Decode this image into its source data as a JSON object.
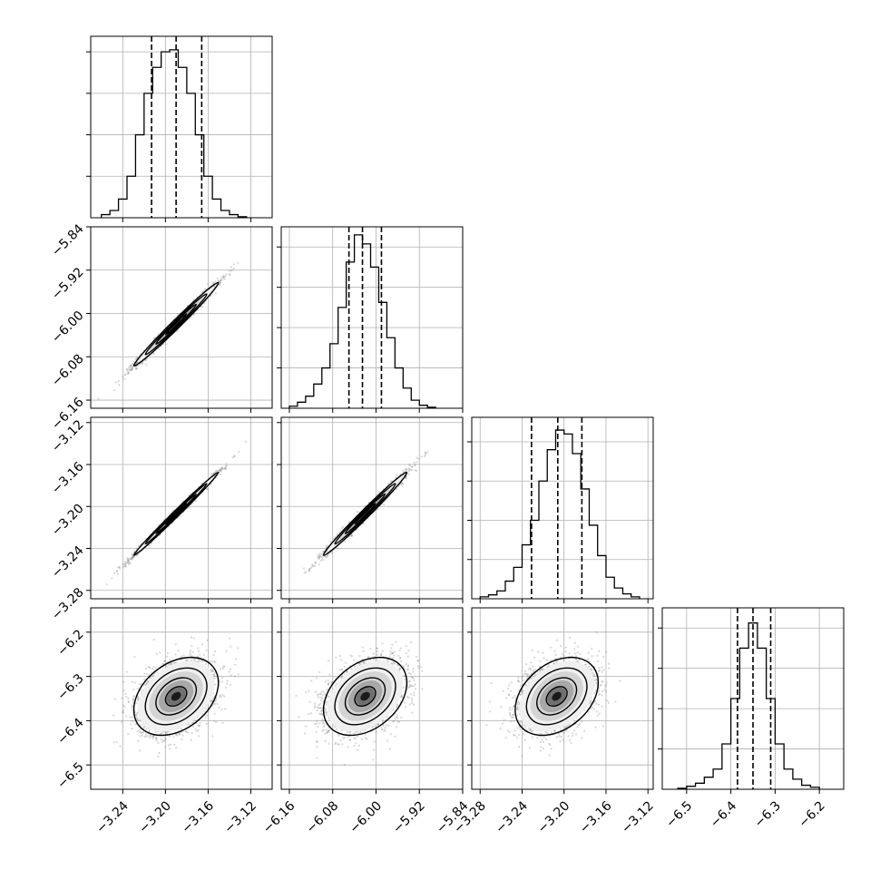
{
  "chart_data": {
    "type": "corner",
    "grid": true,
    "parameters": [
      {
        "range": [
          -3.27,
          -3.1
        ],
        "ticks": [
          -3.24,
          -3.2,
          -3.16,
          -3.12
        ],
        "tick_labels": [
          "−3.24",
          "−3.20",
          "−3.16",
          "−3.12"
        ],
        "quantiles": [
          -3.213,
          -3.19,
          -3.166
        ],
        "center": -3.19,
        "sd": 0.018
      },
      {
        "range": [
          -6.175,
          -5.84
        ],
        "ticks": [
          -6.16,
          -6.08,
          -6.0,
          -5.92,
          -5.84
        ],
        "tick_labels": [
          "−6.16",
          "−6.08",
          "−6.00",
          "−5.92",
          "−5.84"
        ],
        "quantiles": [
          -6.05,
          -6.025,
          -5.99
        ],
        "center": -6.02,
        "sd": 0.035
      },
      {
        "range": [
          -3.288,
          -3.115
        ],
        "ticks": [
          -3.28,
          -3.24,
          -3.2,
          -3.16,
          -3.12
        ],
        "tick_labels": [
          "−3.28",
          "−3.24",
          "−3.20",
          "−3.16",
          "−3.12"
        ],
        "quantiles": [
          -3.231,
          -3.206,
          -3.183
        ],
        "center": -3.207,
        "sd": 0.018
      },
      {
        "range": [
          -6.555,
          -6.145
        ],
        "ticks": [
          -6.5,
          -6.4,
          -6.3,
          -6.2
        ],
        "tick_labels": [
          "−6.5",
          "−6.4",
          "−6.3",
          "−6.2"
        ],
        "quantiles": [
          -6.385,
          -6.35,
          -6.31
        ],
        "center": -6.345,
        "sd": 0.04
      }
    ],
    "histograms": [
      {
        "parameter": 0,
        "bin_edges": [
          -3.26,
          -3.252,
          -3.244,
          -3.236,
          -3.228,
          -3.22,
          -3.212,
          -3.204,
          -3.196,
          -3.188,
          -3.18,
          -3.172,
          -3.164,
          -3.156,
          -3.148,
          -3.14,
          -3.132,
          -3.124
        ],
        "counts": [
          3,
          7,
          18,
          40,
          80,
          120,
          145,
          160,
          162,
          145,
          120,
          80,
          40,
          18,
          7,
          3,
          1
        ],
        "ylim": [
          0,
          175
        ]
      },
      {
        "parameter": 1,
        "bin_edges": [
          -6.16,
          -6.145,
          -6.13,
          -6.115,
          -6.1,
          -6.085,
          -6.07,
          -6.055,
          -6.04,
          -6.025,
          -6.01,
          -5.995,
          -5.98,
          -5.965,
          -5.95,
          -5.935,
          -5.92,
          -5.905,
          -5.89
        ],
        "counts": [
          2,
          6,
          12,
          24,
          40,
          64,
          100,
          145,
          172,
          163,
          140,
          105,
          70,
          40,
          20,
          8,
          3,
          1
        ],
        "ylim": [
          0,
          180
        ]
      },
      {
        "parameter": 2,
        "bin_edges": [
          -3.28,
          -3.272,
          -3.264,
          -3.256,
          -3.248,
          -3.24,
          -3.232,
          -3.224,
          -3.216,
          -3.208,
          -3.2,
          -3.192,
          -3.184,
          -3.176,
          -3.168,
          -3.16,
          -3.152,
          -3.144,
          -3.136,
          -3.128
        ],
        "counts": [
          2,
          4,
          8,
          18,
          32,
          55,
          80,
          120,
          152,
          172,
          168,
          148,
          112,
          75,
          44,
          22,
          11,
          5,
          2
        ],
        "ylim": [
          0,
          185
        ]
      },
      {
        "parameter": 3,
        "bin_edges": [
          -6.52,
          -6.5,
          -6.48,
          -6.46,
          -6.44,
          -6.42,
          -6.4,
          -6.38,
          -6.36,
          -6.34,
          -6.32,
          -6.3,
          -6.28,
          -6.26,
          -6.24,
          -6.22,
          -6.2
        ],
        "counts": [
          1,
          3,
          6,
          12,
          20,
          45,
          90,
          140,
          165,
          140,
          90,
          45,
          20,
          10,
          4,
          2
        ],
        "ylim": [
          0,
          180
        ]
      }
    ],
    "pairs": [
      {
        "x_param": 0,
        "y_param": 1,
        "rho": 0.99
      },
      {
        "x_param": 0,
        "y_param": 2,
        "rho": 0.995
      },
      {
        "x_param": 1,
        "y_param": 2,
        "rho": 0.99
      },
      {
        "x_param": 0,
        "y_param": 3,
        "rho": 0.35
      },
      {
        "x_param": 1,
        "y_param": 3,
        "rho": 0.35
      },
      {
        "x_param": 2,
        "y_param": 3,
        "rho": 0.35
      }
    ]
  }
}
